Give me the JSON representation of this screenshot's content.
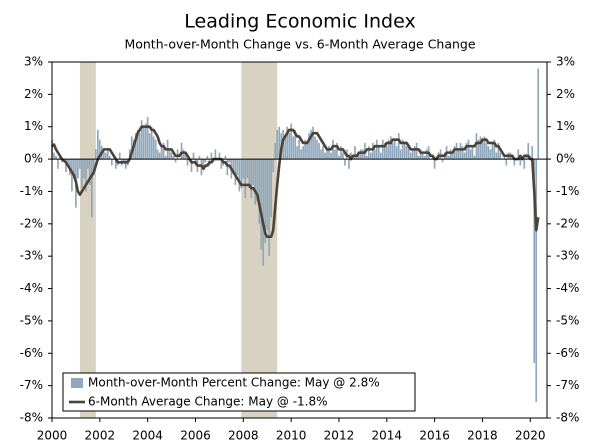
{
  "chart_data": {
    "type": "bar_line",
    "title": "Leading Economic Index",
    "subtitle": "Month-over-Month Change vs. 6-Month Average Change",
    "xlim": [
      2000,
      2020.7
    ],
    "xticks": [
      2000,
      2002,
      2004,
      2006,
      2008,
      2010,
      2012,
      2014,
      2016,
      2018,
      2020
    ],
    "ylim": [
      -8,
      3
    ],
    "yticks": [
      {
        "value": -8,
        "label": "-8%"
      },
      {
        "value": -7,
        "label": "-7%"
      },
      {
        "value": -6,
        "label": "-6%"
      },
      {
        "value": -5,
        "label": "-5%"
      },
      {
        "value": -4,
        "label": "-4%"
      },
      {
        "value": -3,
        "label": "-3%"
      },
      {
        "value": -2,
        "label": "-2%"
      },
      {
        "value": -1,
        "label": "-1%"
      },
      {
        "value": 0,
        "label": "0%"
      },
      {
        "value": 1,
        "label": "1%"
      },
      {
        "value": 2,
        "label": "2%"
      },
      {
        "value": 3,
        "label": "3%"
      }
    ],
    "legend": "bottom-left",
    "shaded_regions": {
      "color": "#d8d2c2",
      "spans": [
        [
          2001.167,
          2001.833
        ],
        [
          2007.917,
          2009.417
        ]
      ]
    },
    "x": [
      2000,
      2000.083,
      2000.167,
      2000.25,
      2000.333,
      2000.417,
      2000.5,
      2000.583,
      2000.667,
      2000.75,
      2000.833,
      2000.917,
      2001,
      2001.083,
      2001.167,
      2001.25,
      2001.333,
      2001.417,
      2001.5,
      2001.583,
      2001.667,
      2001.75,
      2001.833,
      2001.917,
      2002,
      2002.083,
      2002.167,
      2002.25,
      2002.333,
      2002.417,
      2002.5,
      2002.583,
      2002.667,
      2002.75,
      2002.833,
      2002.917,
      2003,
      2003.083,
      2003.167,
      2003.25,
      2003.333,
      2003.417,
      2003.5,
      2003.583,
      2003.667,
      2003.75,
      2003.833,
      2003.917,
      2004,
      2004.083,
      2004.167,
      2004.25,
      2004.333,
      2004.417,
      2004.5,
      2004.583,
      2004.667,
      2004.75,
      2004.833,
      2004.917,
      2005,
      2005.083,
      2005.167,
      2005.25,
      2005.333,
      2005.417,
      2005.5,
      2005.583,
      2005.667,
      2005.75,
      2005.833,
      2005.917,
      2006,
      2006.083,
      2006.167,
      2006.25,
      2006.333,
      2006.417,
      2006.5,
      2006.583,
      2006.667,
      2006.75,
      2006.833,
      2006.917,
      2007,
      2007.083,
      2007.167,
      2007.25,
      2007.333,
      2007.417,
      2007.5,
      2007.583,
      2007.667,
      2007.75,
      2007.833,
      2007.917,
      2008,
      2008.083,
      2008.167,
      2008.25,
      2008.333,
      2008.417,
      2008.5,
      2008.583,
      2008.667,
      2008.75,
      2008.833,
      2008.917,
      2009,
      2009.083,
      2009.167,
      2009.25,
      2009.333,
      2009.417,
      2009.5,
      2009.583,
      2009.667,
      2009.75,
      2009.833,
      2009.917,
      2010,
      2010.083,
      2010.167,
      2010.25,
      2010.333,
      2010.417,
      2010.5,
      2010.583,
      2010.667,
      2010.75,
      2010.833,
      2010.917,
      2011,
      2011.083,
      2011.167,
      2011.25,
      2011.333,
      2011.417,
      2011.5,
      2011.583,
      2011.667,
      2011.75,
      2011.833,
      2011.917,
      2012,
      2012.083,
      2012.167,
      2012.25,
      2012.333,
      2012.417,
      2012.5,
      2012.583,
      2012.667,
      2012.75,
      2012.833,
      2012.917,
      2013,
      2013.083,
      2013.167,
      2013.25,
      2013.333,
      2013.417,
      2013.5,
      2013.583,
      2013.667,
      2013.75,
      2013.833,
      2013.917,
      2014,
      2014.083,
      2014.167,
      2014.25,
      2014.333,
      2014.417,
      2014.5,
      2014.583,
      2014.667,
      2014.75,
      2014.833,
      2014.917,
      2015,
      2015.083,
      2015.167,
      2015.25,
      2015.333,
      2015.417,
      2015.5,
      2015.583,
      2015.667,
      2015.75,
      2015.833,
      2015.917,
      2016,
      2016.083,
      2016.167,
      2016.25,
      2016.333,
      2016.417,
      2016.5,
      2016.583,
      2016.667,
      2016.75,
      2016.833,
      2016.917,
      2017,
      2017.083,
      2017.167,
      2017.25,
      2017.333,
      2017.417,
      2017.5,
      2017.583,
      2017.667,
      2017.75,
      2017.833,
      2017.917,
      2018,
      2018.083,
      2018.167,
      2018.25,
      2018.333,
      2018.417,
      2018.5,
      2018.583,
      2018.667,
      2018.75,
      2018.833,
      2018.917,
      2019,
      2019.083,
      2019.167,
      2019.25,
      2019.333,
      2019.417,
      2019.5,
      2019.583,
      2019.667,
      2019.75,
      2019.833,
      2019.917,
      2020,
      2020.083,
      2020.167,
      2020.25,
      2020.333
    ],
    "series": [
      {
        "name": "Month-over-Month Percent Change: May @ 2.8%",
        "type": "bar",
        "color": "#8fa8bd",
        "values": [
          0.6,
          0.2,
          0.1,
          -0.3,
          0.1,
          -0.1,
          0.0,
          -0.4,
          -0.2,
          -0.5,
          -1.0,
          -0.6,
          -1.5,
          -0.6,
          -0.3,
          -0.9,
          -0.6,
          -1.0,
          -0.3,
          -0.8,
          -1.8,
          -0.5,
          0.3,
          0.9,
          0.6,
          0.4,
          0.3,
          0.2,
          0.3,
          0.1,
          -0.2,
          0.0,
          -0.3,
          -0.2,
          0.2,
          -0.2,
          -0.1,
          -0.3,
          -0.2,
          0.3,
          0.7,
          0.6,
          0.8,
          0.9,
          0.8,
          1.2,
          1.0,
          1.1,
          1.3,
          0.8,
          1.0,
          0.7,
          0.6,
          0.3,
          0.2,
          0.4,
          0.5,
          0.1,
          0.6,
          0.3,
          0.2,
          0.1,
          -0.1,
          0.3,
          0.0,
          0.5,
          0.3,
          0.2,
          -0.2,
          0.0,
          -0.4,
          0.2,
          -0.2,
          -0.4,
          0.1,
          -0.5,
          -0.3,
          -0.1,
          0.1,
          -0.2,
          0.2,
          -0.1,
          0.3,
          0.0,
          0.2,
          -0.3,
          -0.2,
          0.1,
          -0.5,
          -0.1,
          -0.6,
          -0.4,
          -0.8,
          -0.5,
          -1.0,
          -0.9,
          -0.6,
          -1.2,
          -0.6,
          -0.9,
          -1.2,
          -0.8,
          -1.4,
          -1.3,
          -2.0,
          -2.8,
          -3.3,
          -2.6,
          -2.2,
          -3.0,
          -1.8,
          -0.4,
          0.5,
          0.9,
          1.0,
          0.8,
          0.9,
          0.7,
          1.0,
          0.8,
          1.1,
          0.7,
          0.9,
          0.4,
          0.6,
          0.3,
          0.4,
          0.6,
          0.5,
          0.8,
          0.9,
          1.0,
          0.7,
          0.6,
          0.5,
          0.3,
          0.4,
          0.2,
          0.3,
          0.4,
          0.2,
          0.6,
          0.3,
          0.5,
          0.1,
          0.4,
          0.2,
          -0.2,
          0.3,
          -0.3,
          0.2,
          0.1,
          0.4,
          0.1,
          0.2,
          0.3,
          0.3,
          0.5,
          0.1,
          0.4,
          0.2,
          0.5,
          0.3,
          0.6,
          0.4,
          0.2,
          0.6,
          0.5,
          0.4,
          0.6,
          0.7,
          0.5,
          0.6,
          0.4,
          0.8,
          0.3,
          0.6,
          0.5,
          0.4,
          0.4,
          0.2,
          0.3,
          0.4,
          0.5,
          0.1,
          0.3,
          0.2,
          0.1,
          0.3,
          0.4,
          0.0,
          0.1,
          -0.3,
          0.1,
          0.2,
          0.3,
          -0.1,
          0.2,
          0.4,
          0.1,
          0.3,
          0.2,
          0.4,
          0.5,
          0.3,
          0.5,
          0.4,
          0.2,
          0.5,
          0.6,
          0.3,
          0.4,
          0.1,
          0.8,
          0.6,
          0.7,
          0.6,
          0.7,
          0.5,
          0.4,
          0.3,
          0.5,
          0.6,
          0.2,
          0.5,
          0.2,
          0.0,
          0.1,
          -0.2,
          0.2,
          0.2,
          0.1,
          -0.2,
          0.0,
          0.3,
          -0.2,
          0.1,
          -0.3,
          0.1,
          0.5,
          0.1,
          0.4,
          -6.3,
          -7.5,
          2.8
        ]
      },
      {
        "name": "6-Month Average Change: May @ -1.8%",
        "type": "line",
        "color": "#4e4136",
        "values": [
          0.4,
          0.45,
          0.3,
          0.2,
          0.1,
          0.0,
          -0.05,
          -0.1,
          -0.2,
          -0.3,
          -0.4,
          -0.5,
          -0.7,
          -1.0,
          -1.1,
          -1.0,
          -0.9,
          -0.8,
          -0.7,
          -0.6,
          -0.5,
          -0.4,
          -0.2,
          0.0,
          0.1,
          0.2,
          0.3,
          0.3,
          0.3,
          0.3,
          0.2,
          0.1,
          0.0,
          -0.1,
          -0.1,
          -0.1,
          -0.1,
          -0.1,
          -0.1,
          0.0,
          0.2,
          0.4,
          0.6,
          0.8,
          0.9,
          1.0,
          1.0,
          1.0,
          1.0,
          1.0,
          0.9,
          0.9,
          0.8,
          0.7,
          0.5,
          0.4,
          0.4,
          0.3,
          0.3,
          0.3,
          0.3,
          0.2,
          0.1,
          0.1,
          0.1,
          0.2,
          0.2,
          0.2,
          0.1,
          0.0,
          -0.1,
          -0.1,
          -0.1,
          -0.2,
          -0.2,
          -0.2,
          -0.3,
          -0.2,
          -0.2,
          -0.1,
          -0.1,
          0.0,
          0.0,
          0.0,
          0.0,
          0.0,
          -0.1,
          -0.1,
          -0.2,
          -0.2,
          -0.3,
          -0.4,
          -0.5,
          -0.6,
          -0.7,
          -0.8,
          -0.8,
          -0.8,
          -0.8,
          -0.8,
          -0.9,
          -0.9,
          -1.0,
          -1.1,
          -1.4,
          -1.7,
          -2.0,
          -2.3,
          -2.4,
          -2.4,
          -2.4,
          -2.2,
          -1.5,
          -0.8,
          -0.2,
          0.3,
          0.6,
          0.7,
          0.8,
          0.9,
          0.9,
          0.9,
          0.8,
          0.7,
          0.7,
          0.6,
          0.5,
          0.5,
          0.5,
          0.6,
          0.7,
          0.8,
          0.8,
          0.8,
          0.7,
          0.6,
          0.5,
          0.4,
          0.3,
          0.3,
          0.3,
          0.4,
          0.4,
          0.4,
          0.3,
          0.3,
          0.3,
          0.2,
          0.1,
          0.1,
          0.0,
          0.1,
          0.1,
          0.1,
          0.2,
          0.2,
          0.2,
          0.2,
          0.3,
          0.3,
          0.3,
          0.3,
          0.4,
          0.4,
          0.4,
          0.4,
          0.4,
          0.4,
          0.5,
          0.5,
          0.5,
          0.6,
          0.6,
          0.6,
          0.6,
          0.5,
          0.5,
          0.5,
          0.5,
          0.4,
          0.3,
          0.3,
          0.3,
          0.3,
          0.3,
          0.2,
          0.2,
          0.2,
          0.2,
          0.2,
          0.1,
          0.1,
          0.0,
          0.0,
          0.1,
          0.1,
          0.1,
          0.1,
          0.2,
          0.2,
          0.2,
          0.2,
          0.3,
          0.3,
          0.3,
          0.3,
          0.3,
          0.3,
          0.4,
          0.4,
          0.4,
          0.4,
          0.4,
          0.5,
          0.5,
          0.5,
          0.6,
          0.6,
          0.6,
          0.5,
          0.5,
          0.5,
          0.5,
          0.4,
          0.4,
          0.3,
          0.2,
          0.1,
          0.1,
          0.1,
          0.1,
          0.1,
          0.0,
          0.0,
          0.0,
          0.1,
          0.0,
          0.1,
          0.1,
          0.1,
          0.0,
          0.0,
          -1.0,
          -2.2,
          -1.8
        ]
      }
    ]
  }
}
